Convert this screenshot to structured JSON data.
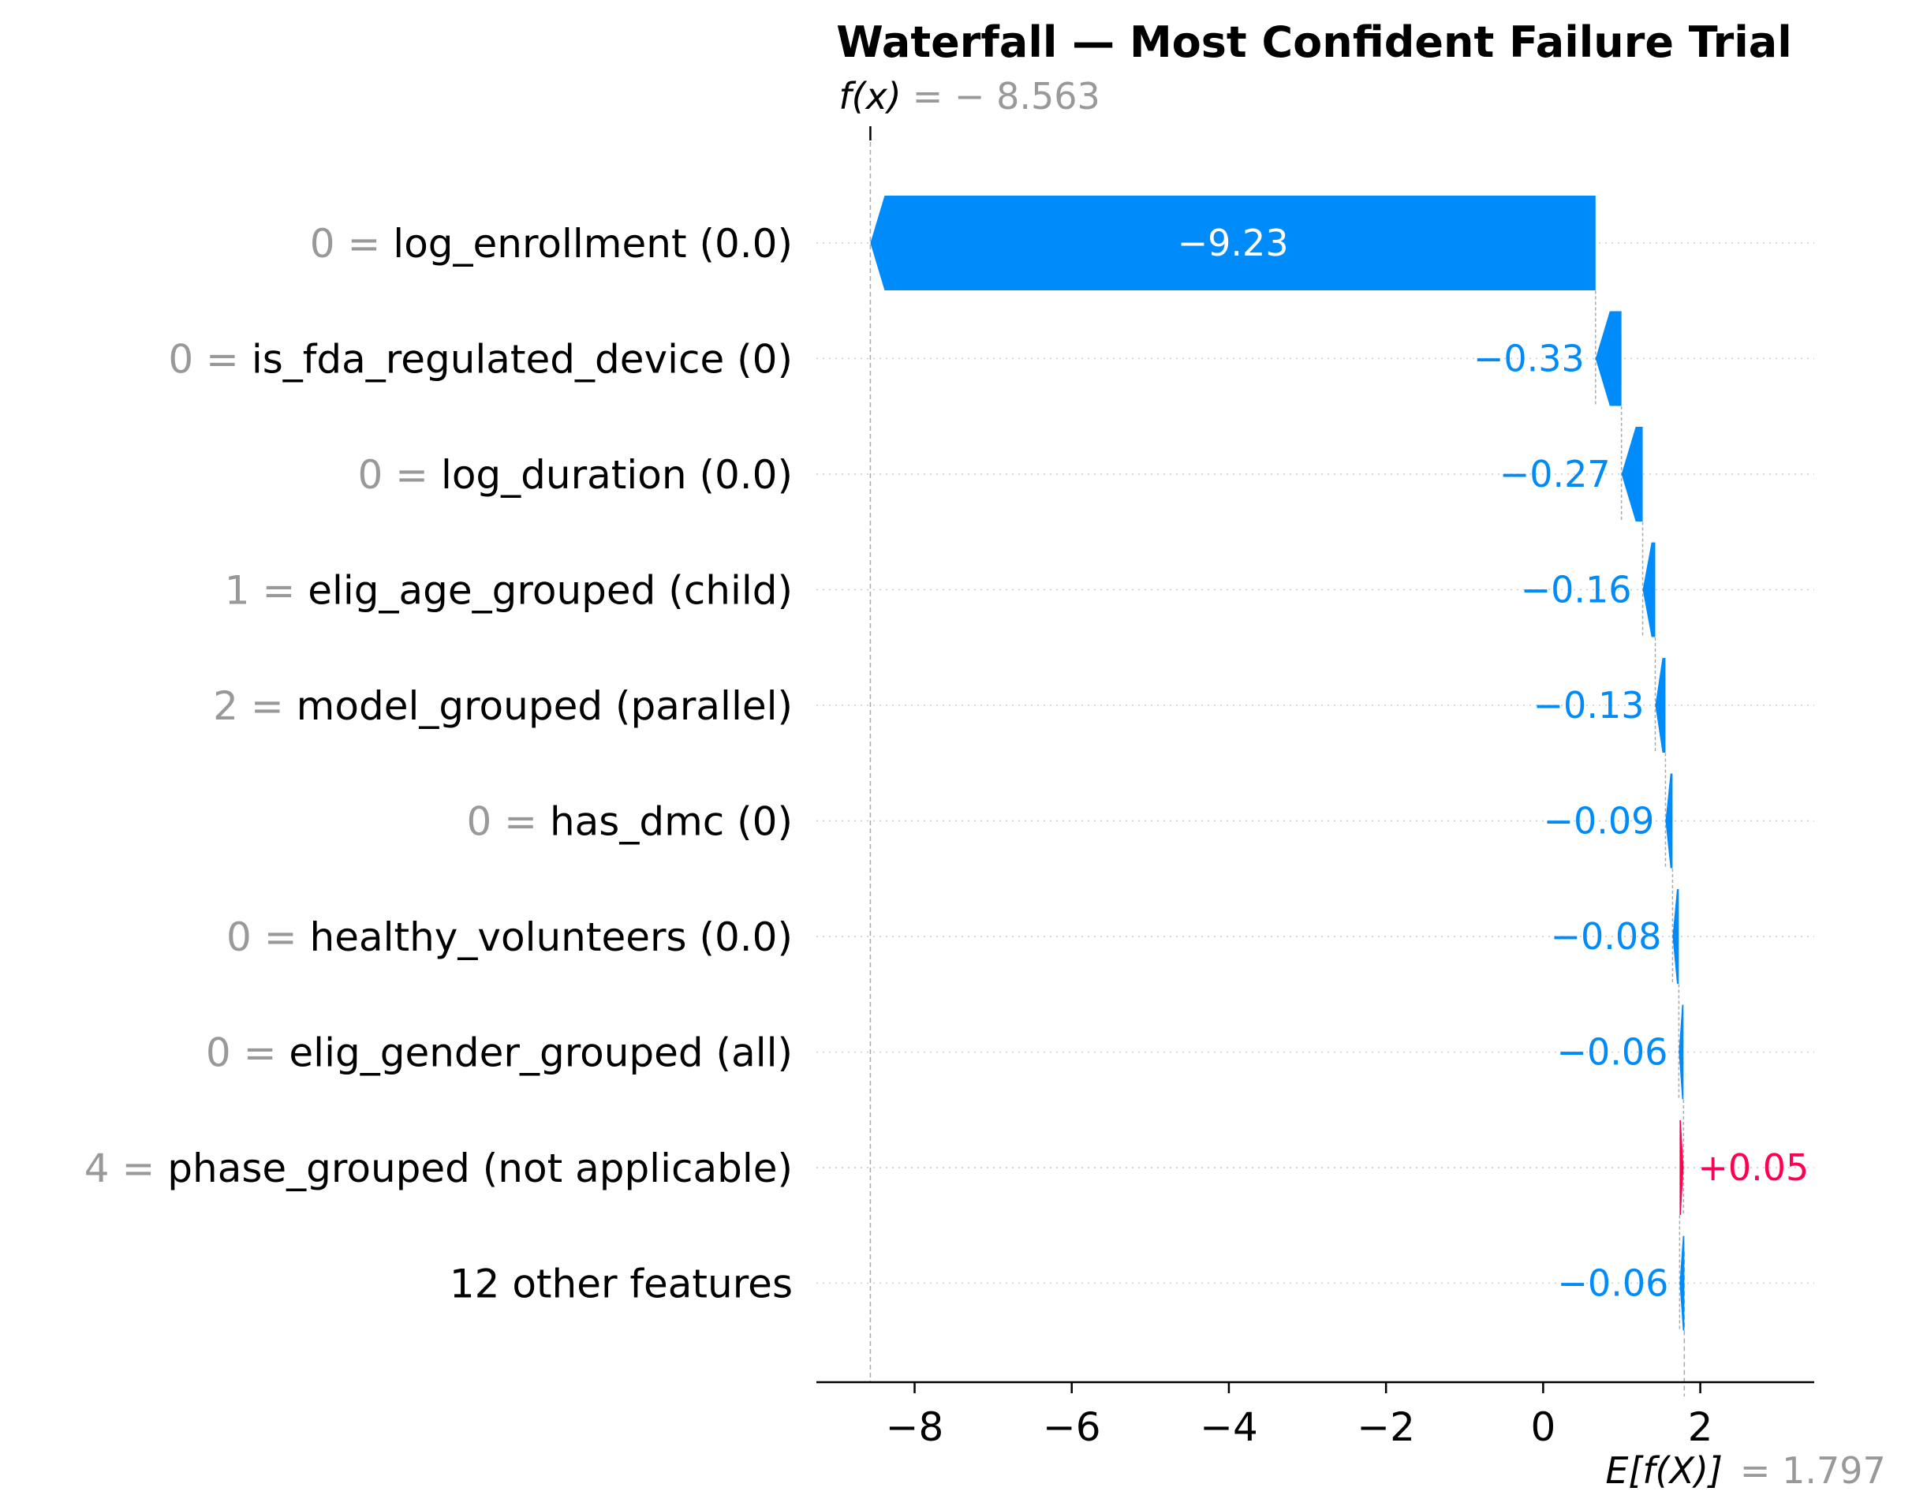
{
  "chart_data": {
    "type": "waterfall",
    "title": "Waterfall — Most Confident Failure Trial",
    "fx": {
      "label": "f(x)",
      "value": -8.563,
      "value_text": "− 8.563"
    },
    "base": {
      "label": "E[f(X)]",
      "value": 1.797,
      "value_text": "= 1.797"
    },
    "features": [
      {
        "value": "0",
        "name": "log_enrollment (0.0)",
        "contribution": -9.23,
        "label": "−9.23"
      },
      {
        "value": "0",
        "name": "is_fda_regulated_device (0)",
        "contribution": -0.33,
        "label": "−0.33"
      },
      {
        "value": "0",
        "name": "log_duration (0.0)",
        "contribution": -0.27,
        "label": "−0.27"
      },
      {
        "value": "1",
        "name": "elig_age_grouped (child)",
        "contribution": -0.16,
        "label": "−0.16"
      },
      {
        "value": "2",
        "name": "model_grouped (parallel)",
        "contribution": -0.13,
        "label": "−0.13"
      },
      {
        "value": "0",
        "name": "has_dmc (0)",
        "contribution": -0.09,
        "label": "−0.09"
      },
      {
        "value": "0",
        "name": "healthy_volunteers (0.0)",
        "contribution": -0.08,
        "label": "−0.08"
      },
      {
        "value": "0",
        "name": "elig_gender_grouped (all)",
        "contribution": -0.06,
        "label": "−0.06"
      },
      {
        "value": "4",
        "name": "phase_grouped (not applicable)",
        "contribution": 0.05,
        "label": "+0.05"
      },
      {
        "value": "",
        "name": "12 other features",
        "contribution": -0.06,
        "label": "−0.06"
      }
    ],
    "x_ticks": [
      -8,
      -6,
      -4,
      -2,
      0,
      2
    ],
    "x_tick_labels": [
      "−8",
      "−6",
      "−4",
      "−2",
      "0",
      "2"
    ],
    "xlim": [
      -9.25,
      3.45
    ],
    "colors": {
      "negative": "#008bfb",
      "positive": "#ff0051",
      "muted": "#999999"
    }
  }
}
